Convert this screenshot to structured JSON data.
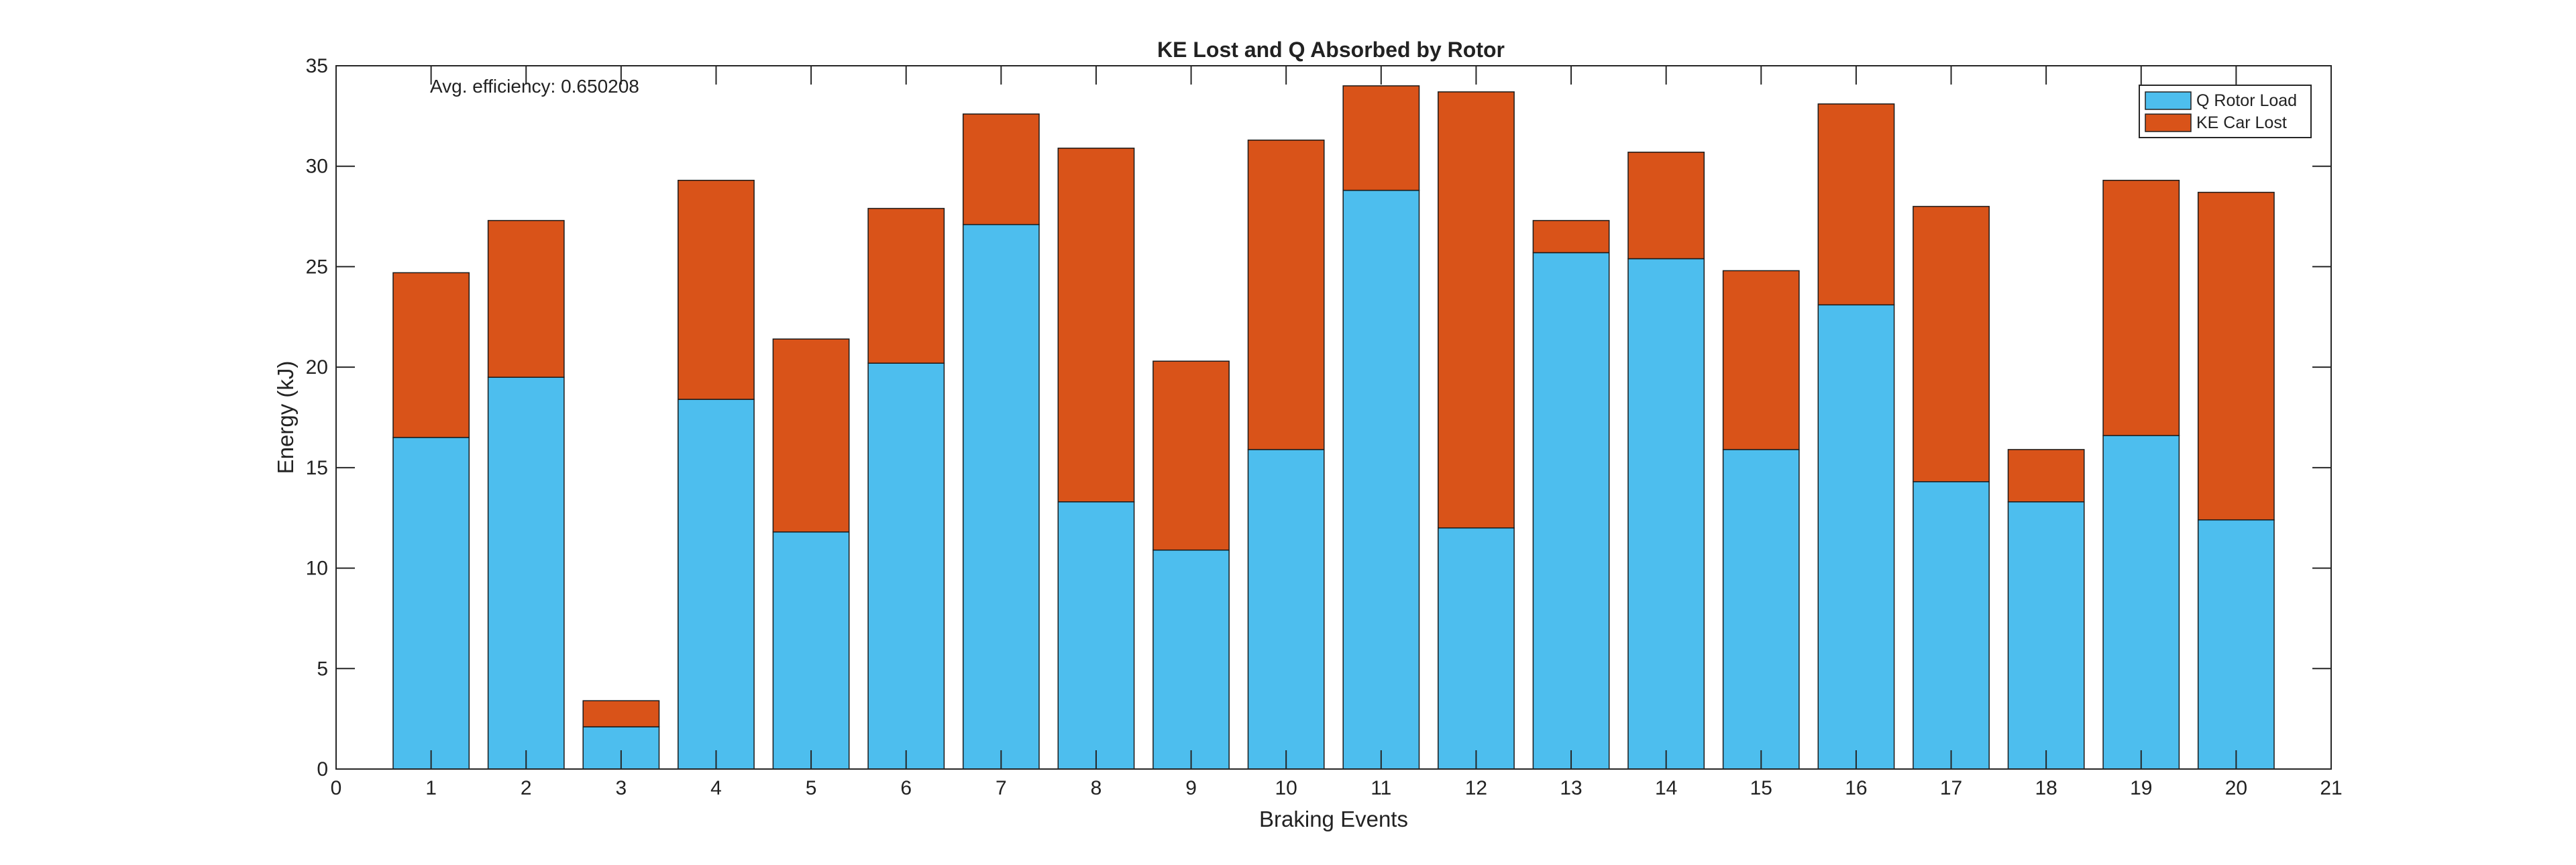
{
  "chart_data": {
    "type": "bar",
    "stacked": true,
    "title": "KE Lost and Q Absorbed by Rotor",
    "xlabel": "Braking Events",
    "ylabel": "Energy (kJ)",
    "xlim": [
      0,
      21
    ],
    "ylim": [
      0,
      35
    ],
    "xticks": [
      "0",
      "1",
      "2",
      "3",
      "4",
      "5",
      "6",
      "7",
      "8",
      "9",
      "10",
      "11",
      "12",
      "13",
      "14",
      "15",
      "16",
      "17",
      "18",
      "19",
      "20",
      "21"
    ],
    "yticks": [
      "0",
      "5",
      "10",
      "15",
      "20",
      "25",
      "30",
      "35"
    ],
    "categories": [
      1,
      2,
      3,
      4,
      5,
      6,
      7,
      8,
      9,
      10,
      11,
      12,
      13,
      14,
      15,
      16,
      17,
      18,
      19,
      20
    ],
    "series": [
      {
        "name": "Q Rotor Load",
        "color": "#4DBEEE",
        "values": [
          16.5,
          19.5,
          2.1,
          18.4,
          11.8,
          20.2,
          27.1,
          13.3,
          10.9,
          15.9,
          28.8,
          12.0,
          25.7,
          25.4,
          15.9,
          23.1,
          14.3,
          13.3,
          16.6,
          12.4
        ]
      },
      {
        "name": "KE Car Lost",
        "color": "#D95319",
        "values": [
          8.2,
          7.8,
          1.3,
          10.9,
          9.6,
          7.7,
          5.5,
          17.6,
          9.4,
          15.4,
          5.2,
          21.7,
          1.6,
          5.3,
          8.9,
          10.0,
          13.7,
          2.6,
          12.7,
          16.3
        ]
      }
    ],
    "annotation": "Avg. efficiency: 0.650208",
    "legend_position": "top-right",
    "grid": false
  }
}
